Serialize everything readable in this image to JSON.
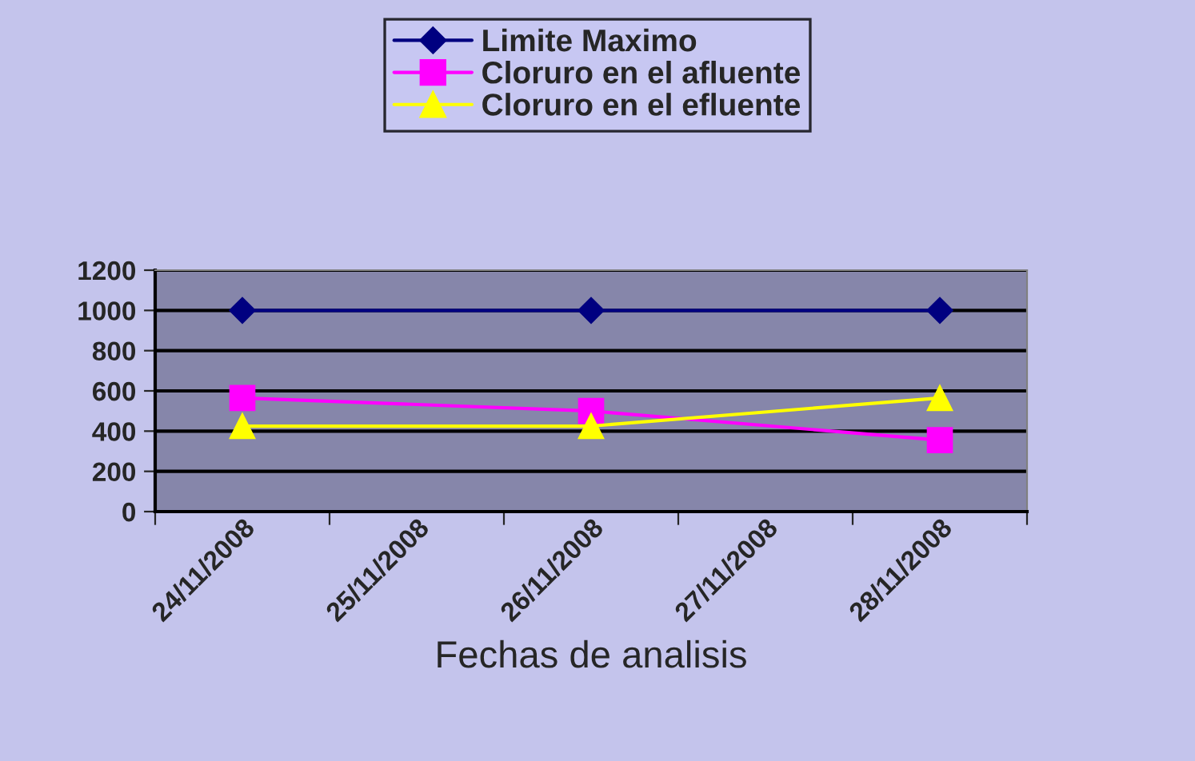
{
  "chart_data": {
    "type": "line",
    "xlabel": "Fechas de analisis",
    "categories": [
      "24/11/2008",
      "25/11/2008",
      "26/11/2008",
      "27/11/2008",
      "28/11/2008"
    ],
    "series": [
      {
        "name": "Limite Maximo",
        "color": "#000080",
        "marker": "diamond",
        "values": [
          1000,
          null,
          1000,
          null,
          1000
        ]
      },
      {
        "name": "Cloruro en el afluente",
        "color": "#ff00ff",
        "marker": "square",
        "values": [
          565,
          null,
          500,
          null,
          355
        ]
      },
      {
        "name": "Cloruro en el efluente",
        "color": "#ffff00",
        "marker": "triangle",
        "values": [
          425,
          null,
          425,
          null,
          565
        ]
      }
    ],
    "ylim": [
      0,
      1200
    ],
    "yticks": [
      0,
      200,
      400,
      600,
      800,
      1000,
      1200
    ],
    "grid": "y",
    "legend": "top"
  }
}
